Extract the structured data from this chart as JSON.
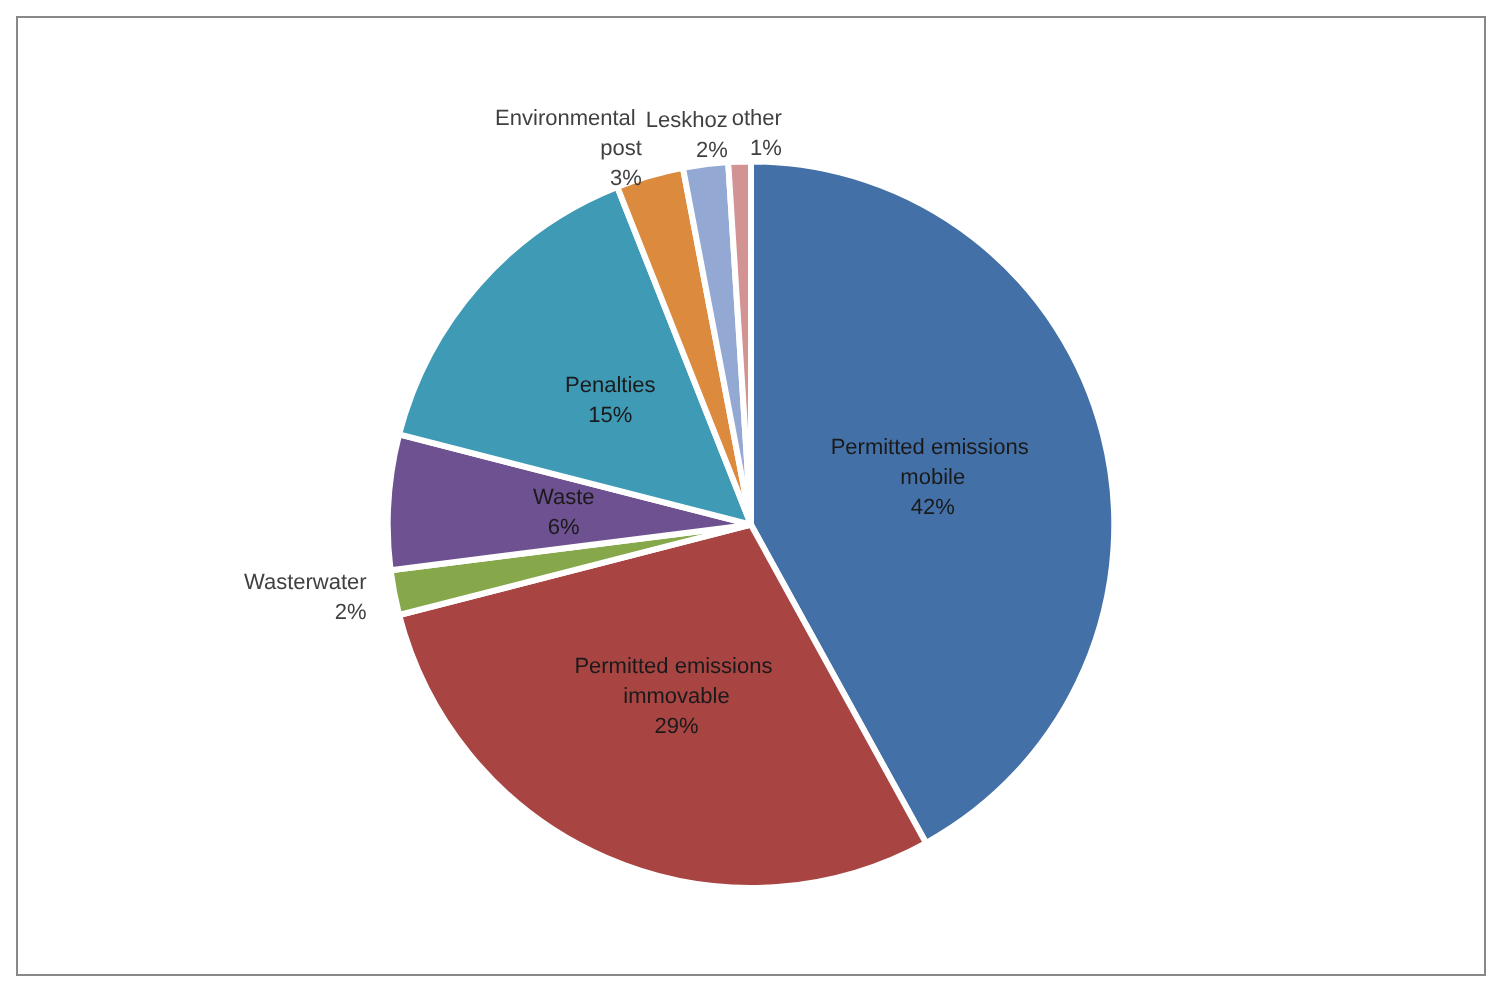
{
  "chart_data": {
    "type": "pie",
    "categories": [
      "Permitted emissions mobile",
      "Permitted emissions immovable",
      "Wasterwater",
      "Waste",
      "Penalties",
      "Environmental post",
      "Leskhoz",
      "other"
    ],
    "values": [
      42,
      29,
      2,
      6,
      15,
      3,
      2,
      1
    ],
    "colors": [
      "#4470a8",
      "#a84442",
      "#86a84a",
      "#6e5190",
      "#3e9ab5",
      "#dc8a3e",
      "#93a9d3",
      "#d49393"
    ],
    "value_labels": [
      "42%",
      "29%",
      "2%",
      "6%",
      "15%",
      "3%",
      "2%",
      "1%"
    ],
    "legend": false
  }
}
